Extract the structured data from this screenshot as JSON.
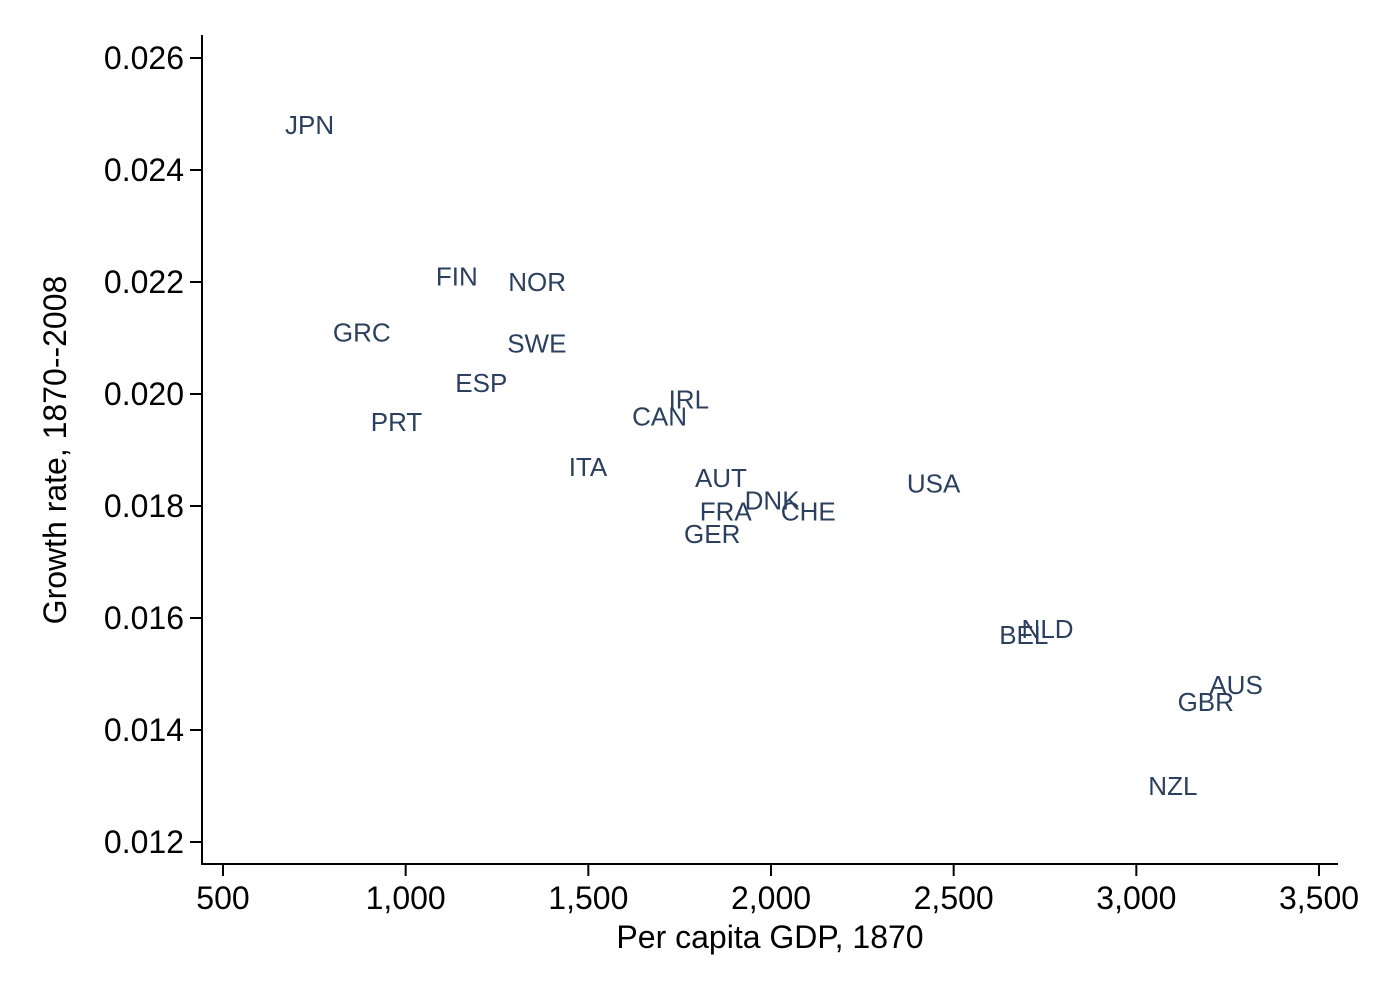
{
  "chart_data": {
    "type": "scatter",
    "title": "",
    "xlabel": "Per capita GDP, 1870",
    "ylabel": "Growth rate, 1870--2008",
    "xlim": [
      450,
      3550
    ],
    "ylim": [
      0.0116,
      0.0264
    ],
    "xticks": [
      500,
      1000,
      1500,
      2000,
      2500,
      3000,
      3500
    ],
    "xtick_labels": [
      "500",
      "1,000",
      "1,500",
      "2,000",
      "2,500",
      "3,000",
      "3,500"
    ],
    "yticks": [
      0.012,
      0.014,
      0.016,
      0.018,
      0.02,
      0.022,
      0.024,
      0.026
    ],
    "ytick_labels": [
      "0.012",
      "0.014",
      "0.016",
      "0.018",
      "0.020",
      "0.022",
      "0.024",
      "0.026"
    ],
    "grid": false,
    "marker_color": "#2b3f5e",
    "points": [
      {
        "label": "JPN",
        "x": 737,
        "y": 0.0248
      },
      {
        "label": "FIN",
        "x": 1140,
        "y": 0.0221
      },
      {
        "label": "NOR",
        "x": 1360,
        "y": 0.022
      },
      {
        "label": "GRC",
        "x": 880,
        "y": 0.0211
      },
      {
        "label": "SWE",
        "x": 1359,
        "y": 0.0209
      },
      {
        "label": "ESP",
        "x": 1207,
        "y": 0.0202
      },
      {
        "label": "IRL",
        "x": 1775,
        "y": 0.0199
      },
      {
        "label": "PRT",
        "x": 975,
        "y": 0.0195
      },
      {
        "label": "CAN",
        "x": 1695,
        "y": 0.0196
      },
      {
        "label": "ITA",
        "x": 1499,
        "y": 0.0187
      },
      {
        "label": "AUT",
        "x": 1863,
        "y": 0.0185
      },
      {
        "label": "USA",
        "x": 2445,
        "y": 0.0184
      },
      {
        "label": "DNK",
        "x": 2003,
        "y": 0.0181
      },
      {
        "label": "FRA",
        "x": 1876,
        "y": 0.0179
      },
      {
        "label": "CHE",
        "x": 2102,
        "y": 0.0179
      },
      {
        "label": "GER",
        "x": 1839,
        "y": 0.0175
      },
      {
        "label": "NLD",
        "x": 2757,
        "y": 0.0158
      },
      {
        "label": "BEL",
        "x": 2692,
        "y": 0.0157
      },
      {
        "label": "AUS",
        "x": 3273,
        "y": 0.0148
      },
      {
        "label": "GBR",
        "x": 3190,
        "y": 0.0145
      },
      {
        "label": "NZL",
        "x": 3100,
        "y": 0.013
      }
    ]
  }
}
